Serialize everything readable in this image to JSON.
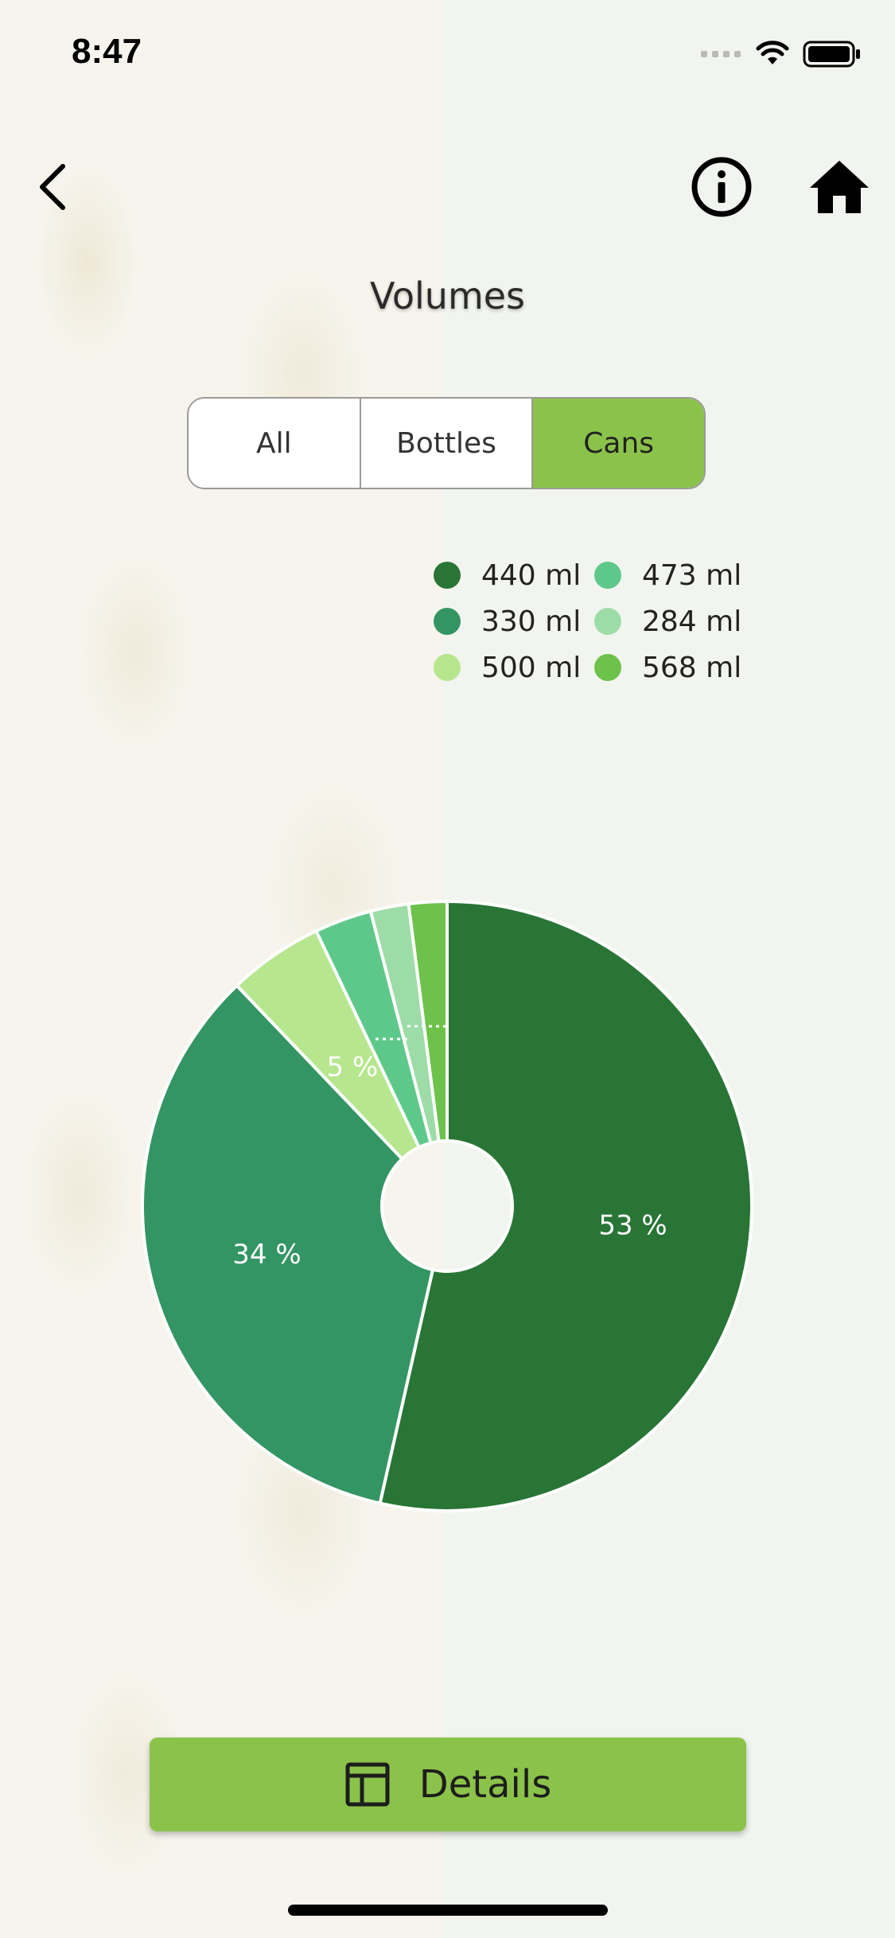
{
  "status_bar": {
    "time": "8:47"
  },
  "nav": {
    "back_icon": "chevron-left-icon",
    "info_icon": "info-circle-icon",
    "home_icon": "home-icon"
  },
  "page": {
    "title": "Volumes"
  },
  "segmented": {
    "options": [
      "All",
      "Bottles",
      "Cans"
    ],
    "selected": "Cans"
  },
  "chart_data": {
    "type": "pie",
    "style": "donut",
    "legend_position": "top-right",
    "categories": [
      "440 ml",
      "330 ml",
      "500 ml",
      "473 ml",
      "284 ml",
      "568 ml"
    ],
    "values": [
      53,
      34,
      5,
      3,
      2,
      2
    ],
    "colors": [
      "#287535",
      "#339563",
      "#b6e68e",
      "#5ec88b",
      "#9ddca7",
      "#6cc24a"
    ],
    "data_labels": [
      "53 %",
      "34 %",
      "5 %",
      "",
      "",
      ""
    ]
  },
  "details_button": {
    "label": "Details",
    "icon": "table-icon"
  },
  "colors": {
    "accent": "#8bc34a"
  }
}
